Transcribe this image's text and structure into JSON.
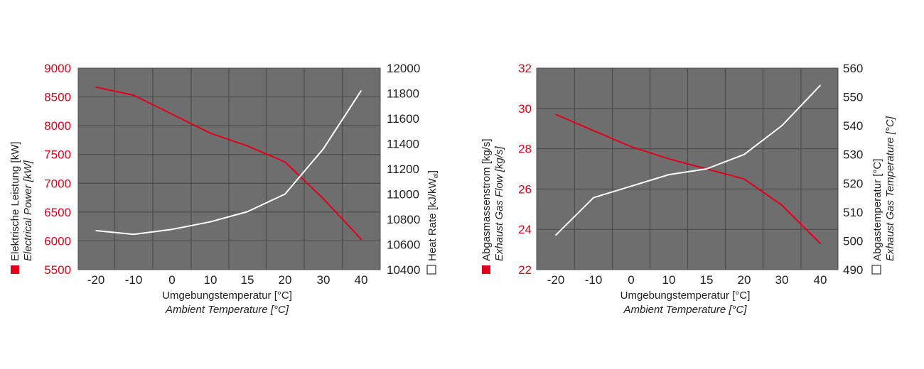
{
  "colors": {
    "plot_bg": "#6e6e6e",
    "grid": "#4c4c4c",
    "red": "#e2001a",
    "white": "#ffffff",
    "text": "#222222"
  },
  "chart_data": [
    {
      "type": "line",
      "x_tick_labels": [
        "-20",
        "-10",
        "0",
        "10",
        "15",
        "20",
        "30",
        "40"
      ],
      "x_title_de": "Umgebungstemperatur [°C]",
      "x_title_en": "Ambient Temperature [°C]",
      "left_axis": {
        "label_de": "Elektrische Leistung [kW]",
        "label_en": "Electrical Power [kW]",
        "ylim": [
          5500,
          9000
        ],
        "ticks": [
          "5500",
          "6000",
          "6500",
          "7000",
          "7500",
          "8000",
          "8500",
          "9000"
        ]
      },
      "right_axis": {
        "label_main": "Heat Rate [kJ/kW",
        "label_sub": "el",
        "label_end": "]",
        "ylim": [
          10400,
          12000
        ],
        "ticks": [
          "10400",
          "10600",
          "10800",
          "11000",
          "11200",
          "11400",
          "11600",
          "11800",
          "12000"
        ]
      },
      "series": [
        {
          "name": "Elektrische Leistung [kW]",
          "axis": "left",
          "color": "red",
          "values": [
            8670,
            8530,
            8200,
            7870,
            7650,
            7370,
            6730,
            6030
          ]
        },
        {
          "name": "Heat Rate [kJ/kWel]",
          "axis": "right",
          "color": "white",
          "values": [
            10710,
            10680,
            10720,
            10780,
            10860,
            11000,
            11360,
            11820
          ]
        }
      ]
    },
    {
      "type": "line",
      "x_tick_labels": [
        "-20",
        "-10",
        "0",
        "10",
        "15",
        "20",
        "30",
        "40"
      ],
      "x_title_de": "Umgebungstemperatur [°C]",
      "x_title_en": "Ambient Temperature [°C]",
      "left_axis": {
        "label_de": "Abgasmassenstrom [kg/s]",
        "label_en": "Exhaust Gas Flow [kg/s]",
        "ylim": [
          22,
          32
        ],
        "ticks": [
          "22",
          "24",
          "26",
          "28",
          "30",
          "32"
        ]
      },
      "right_axis": {
        "label_de": "Abgastemperatur [°C]",
        "label_en": "Exhaust Gas Temperature [°C]",
        "ylim": [
          490,
          560
        ],
        "ticks": [
          "490",
          "500",
          "510",
          "520",
          "530",
          "540",
          "550",
          "560"
        ]
      },
      "series": [
        {
          "name": "Abgasmassenstrom [kg/s]",
          "axis": "left",
          "color": "red",
          "values": [
            29.7,
            28.9,
            28.1,
            27.5,
            27.0,
            26.5,
            25.2,
            23.3
          ]
        },
        {
          "name": "Abgastemperatur [°C]",
          "axis": "right",
          "color": "white",
          "values": [
            502,
            515,
            519,
            523,
            525,
            530,
            540,
            554
          ]
        }
      ]
    }
  ]
}
